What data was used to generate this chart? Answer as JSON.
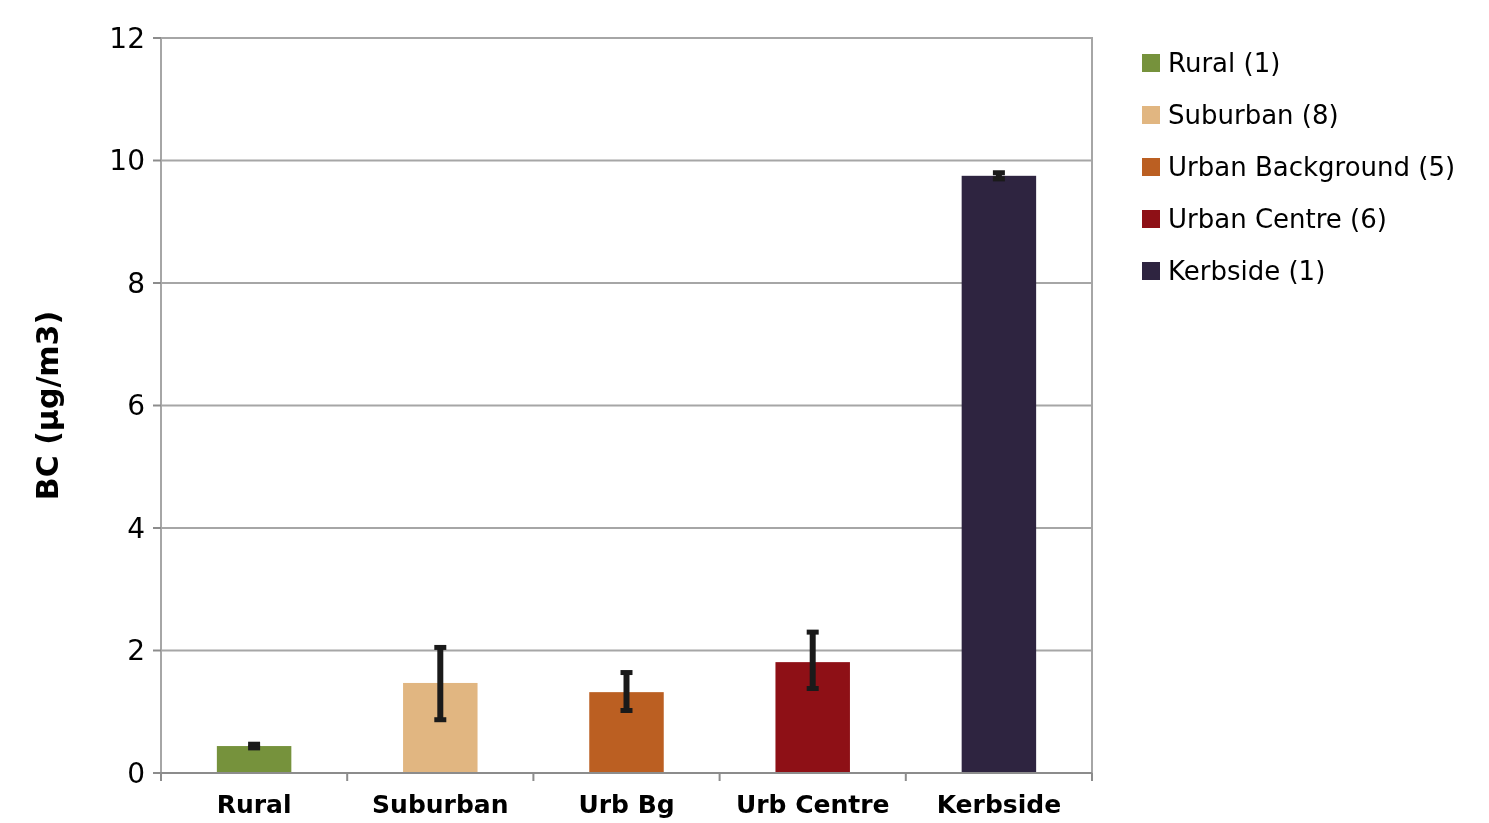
{
  "chart_data": {
    "type": "bar",
    "ylabel": "BC (µg/m3)",
    "categories": [
      "Rural",
      "Suburban",
      "Urb Bg",
      "Urb Centre",
      "Kerbside"
    ],
    "series": [
      {
        "name": "Rural (1)",
        "color": "#76923c",
        "values": [
          0.44,
          null,
          null,
          null,
          null
        ],
        "errors": [
          0.03,
          null,
          null,
          null,
          null
        ]
      },
      {
        "name": "Suburban (8)",
        "color": "#e1b681",
        "values": [
          null,
          1.47,
          null,
          null,
          null
        ],
        "errors": [
          null,
          [
            0.87,
            2.05
          ],
          null,
          null,
          null
        ]
      },
      {
        "name": "Urban Background (5)",
        "color": "#bb5f22",
        "values": [
          null,
          null,
          1.32,
          null,
          null
        ],
        "errors": [
          null,
          null,
          [
            1.02,
            1.64
          ],
          null,
          null
        ]
      },
      {
        "name": "Urban Centre (6)",
        "color": "#8e1016",
        "values": [
          null,
          null,
          null,
          1.81,
          null
        ],
        "errors": [
          null,
          null,
          null,
          [
            1.38,
            2.3
          ],
          null
        ]
      },
      {
        "name": "Kerbside (1)",
        "color": "#2e2440",
        "values": [
          null,
          null,
          null,
          null,
          9.75
        ],
        "errors": [
          null,
          null,
          null,
          null,
          0.05
        ]
      }
    ],
    "ylim": [
      0,
      12
    ],
    "yticks": [
      0,
      2,
      4,
      6,
      8,
      10,
      12
    ],
    "grid": "y",
    "legend": "right"
  }
}
